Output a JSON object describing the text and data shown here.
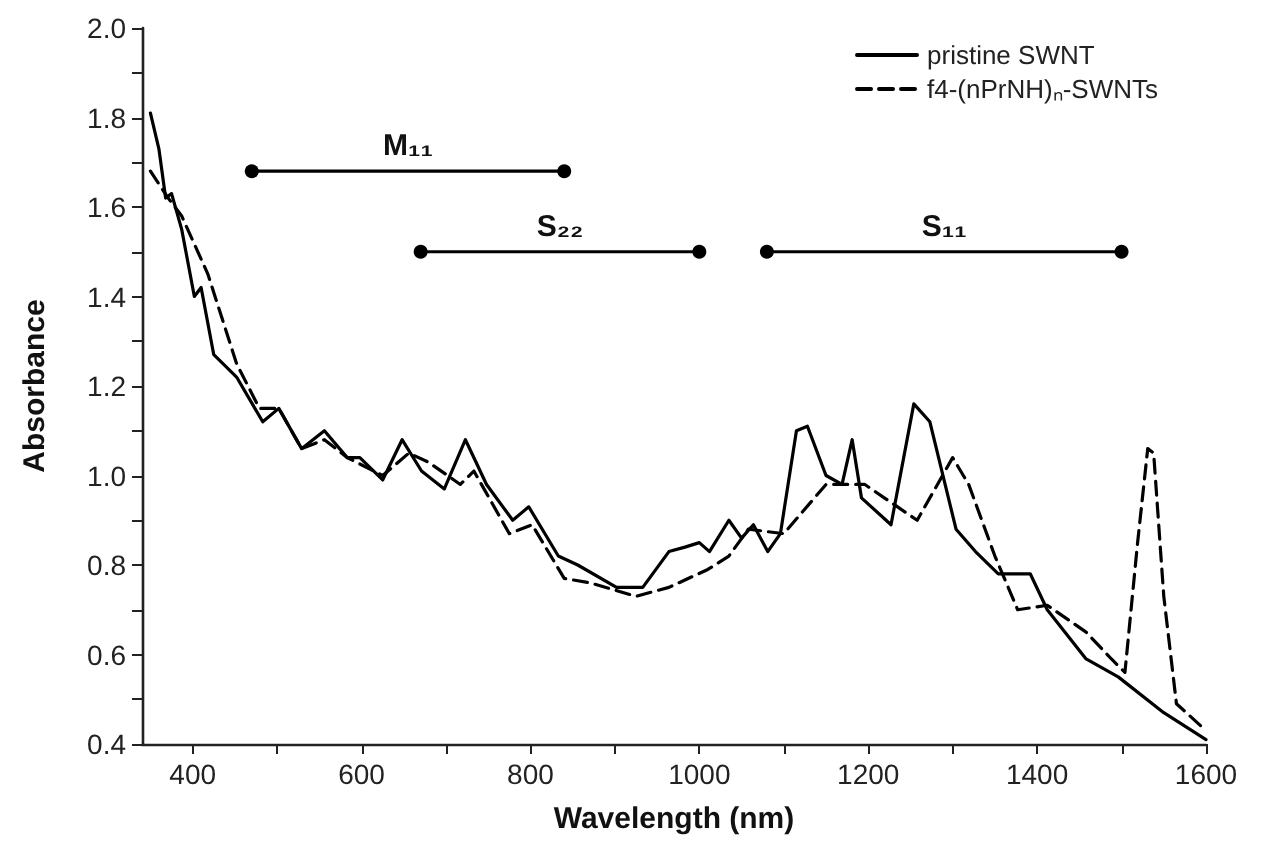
{
  "chart_data": {
    "type": "line",
    "xlabel": "Wavelength (nm)",
    "ylabel": "Absorbance",
    "xlim": [
      340,
      1600
    ],
    "xticks": [
      400,
      {
        "value": 500,
        "label": null
      },
      600,
      {
        "value": 700,
        "label": null
      },
      800,
      {
        "value": 900,
        "label": null
      },
      1000,
      {
        "value": 1100,
        "label": null
      },
      1200,
      {
        "value": 1300,
        "label": null
      },
      1400,
      {
        "value": 1500,
        "label": null
      },
      1600
    ],
    "ylim": [
      0.4,
      2.0
    ],
    "yticks": [
      0.4,
      {
        "value": 0.5,
        "label": null
      },
      0.6,
      {
        "value": 0.7,
        "label": null
      },
      0.8,
      {
        "value": 0.9,
        "label": null
      },
      {
        "value": 1.0,
        "label": "1.0"
      },
      {
        "value": 1.1,
        "label": null
      },
      1.2,
      {
        "value": 1.3,
        "label": null
      },
      1.4,
      {
        "value": 1.5,
        "label": null
      },
      1.6,
      {
        "value": 1.7,
        "label": null
      },
      1.8,
      {
        "value": 1.9,
        "label": null
      },
      {
        "value": 2.0,
        "label": "2.0"
      }
    ],
    "grid": false,
    "legend": "top right",
    "marker": "none",
    "series": [
      {
        "name": "pristine SWNT",
        "color": "#000000",
        "line_style": "solid",
        "x": [
          350,
          360,
          368,
          375,
          387,
          402,
          410,
          425,
          452,
          483,
          502,
          529,
          556,
          583,
          598,
          625,
          648,
          671,
          698,
          723,
          748,
          779,
          798,
          833,
          856,
          902,
          933,
          964,
          983,
          1000,
          1012,
          1035,
          1050,
          1064,
          1081,
          1096,
          1115,
          1128,
          1150,
          1169,
          1181,
          1192,
          1227,
          1254,
          1273,
          1304,
          1327,
          1354,
          1392,
          1412,
          1458,
          1496,
          1550,
          1600
        ],
        "values": [
          1.81,
          1.73,
          1.62,
          1.63,
          1.55,
          1.4,
          1.42,
          1.27,
          1.22,
          1.12,
          1.15,
          1.06,
          1.1,
          1.04,
          1.04,
          0.99,
          1.08,
          1.01,
          0.97,
          1.08,
          0.98,
          0.9,
          0.93,
          0.82,
          0.8,
          0.75,
          0.75,
          0.83,
          0.84,
          0.85,
          0.83,
          0.9,
          0.86,
          0.89,
          0.83,
          0.87,
          1.1,
          1.11,
          1.0,
          0.98,
          1.08,
          0.95,
          0.89,
          1.16,
          1.12,
          0.88,
          0.83,
          0.78,
          0.78,
          0.7,
          0.59,
          0.55,
          0.47,
          0.41
        ]
      },
      {
        "name": "f4-(nPrNH)ₙ-SWNTs",
        "color": "#000000",
        "line_style": "dashed",
        "x": [
          350,
          371,
          387,
          418,
          452,
          479,
          502,
          529,
          556,
          583,
          625,
          656,
          679,
          717,
          733,
          775,
          802,
          840,
          871,
          925,
          964,
          1010,
          1035,
          1058,
          1100,
          1150,
          1196,
          1219,
          1258,
          1300,
          1319,
          1350,
          1377,
          1412,
          1458,
          1488,
          1504,
          1519,
          1531,
          1538,
          1550,
          1565,
          1600
        ],
        "values": [
          1.68,
          1.62,
          1.58,
          1.45,
          1.25,
          1.15,
          1.15,
          1.06,
          1.08,
          1.04,
          1.0,
          1.05,
          1.03,
          0.98,
          1.01,
          0.87,
          0.89,
          0.77,
          0.76,
          0.73,
          0.75,
          0.79,
          0.82,
          0.88,
          0.87,
          0.98,
          0.98,
          0.95,
          0.9,
          1.04,
          0.98,
          0.82,
          0.7,
          0.71,
          0.65,
          0.59,
          0.56,
          0.85,
          1.06,
          1.05,
          0.73,
          0.49,
          0.43
        ]
      },
      {
        "name": "M₁₁",
        "color": "#000000",
        "line_style": "solid",
        "marker": "circle",
        "x": [
          470,
          840
        ],
        "values": [
          1.68,
          1.68
        ]
      },
      {
        "name": "S₂₂",
        "color": "#000000",
        "line_style": "solid",
        "marker": "circle",
        "x": [
          670,
          1000
        ],
        "values": [
          1.5,
          1.5
        ]
      },
      {
        "name": "S₁₁",
        "color": "#000000",
        "line_style": "solid",
        "marker": "circle",
        "x": [
          1080,
          1500
        ],
        "values": [
          1.5,
          1.5
        ]
      }
    ]
  }
}
